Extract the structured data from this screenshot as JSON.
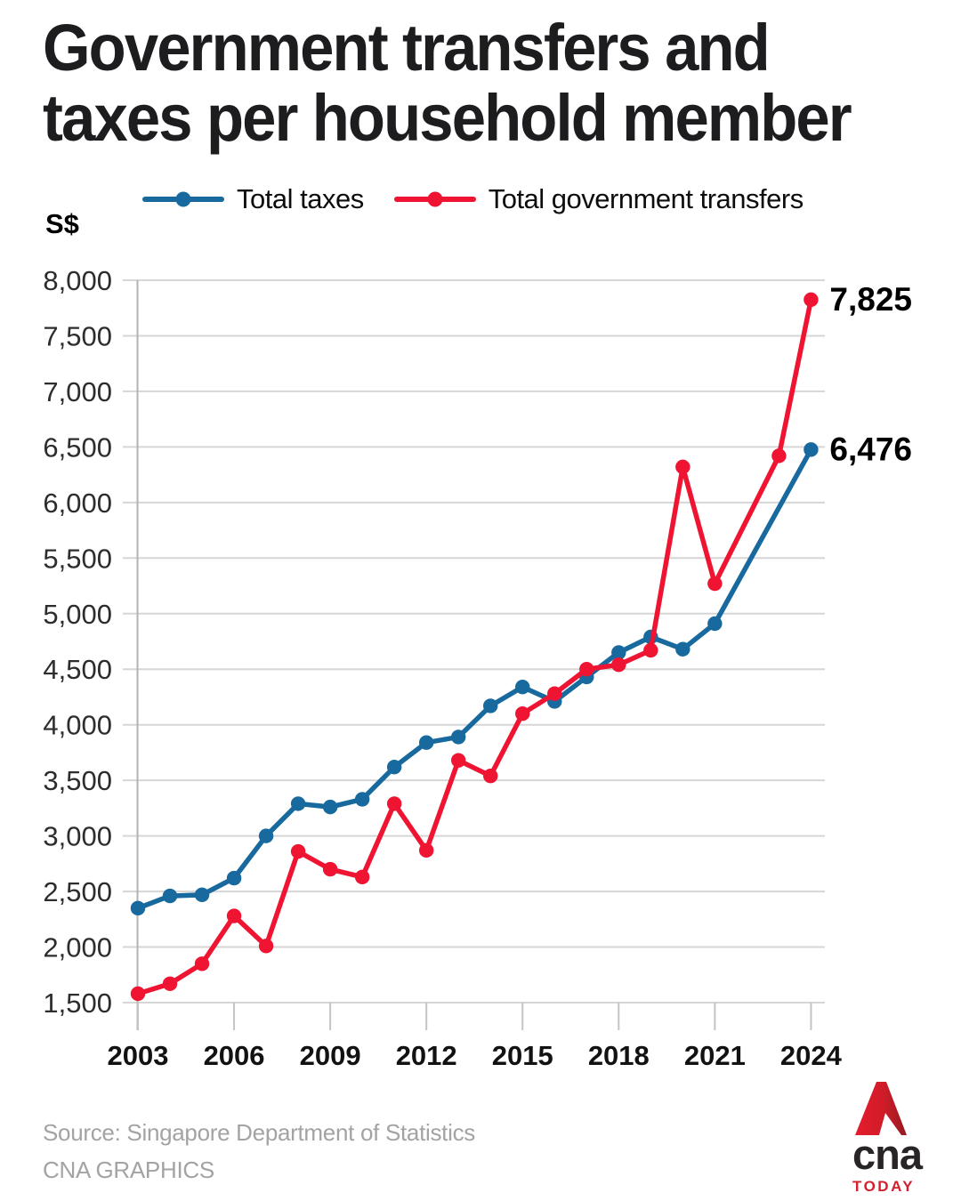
{
  "title_lines": [
    "Government transfers and",
    "taxes per household member"
  ],
  "unit_label": "S$",
  "legend": {
    "items": [
      {
        "label": "Total taxes",
        "color": "#17699e"
      },
      {
        "label": "Total government transfers",
        "color": "#ee1432"
      }
    ]
  },
  "footer": {
    "source": "Source: Singapore Department of Statistics",
    "credit": "CNA GRAPHICS"
  },
  "logo": {
    "brand": "cna",
    "sub": "TODAY"
  },
  "colors": {
    "taxes_blue": "#17699e",
    "transfers_red": "#ee1432",
    "gridline": "#d6d6d6",
    "axis": "#b3b3b3",
    "tick": "#c4c4c4",
    "y_label": "#2d2d2d",
    "x_label": "#121212",
    "end_label": "#000000"
  },
  "chart_data": {
    "type": "line",
    "title": "Government transfers and taxes per household member",
    "xlabel": "",
    "ylabel": "S$",
    "ylim": [
      1500,
      8000
    ],
    "xlim": [
      2003,
      2024
    ],
    "grid": true,
    "legend_position": "top",
    "yticks": [
      8000,
      7500,
      7000,
      6500,
      6000,
      5500,
      5000,
      4500,
      4000,
      3500,
      3000,
      2500,
      2000,
      1500
    ],
    "ytick_labels": [
      "8,000",
      "7,500",
      "7,000",
      "6,500",
      "6,000",
      "5,500",
      "5,000",
      "4,500",
      "4,000",
      "3,500",
      "3,000",
      "2,500",
      "2,000",
      "1,500"
    ],
    "xticks": [
      2003,
      2006,
      2009,
      2012,
      2015,
      2018,
      2021,
      2024
    ],
    "xtick_labels": [
      "2003",
      "2006",
      "2009",
      "2012",
      "2015",
      "2018",
      "2021",
      "2024"
    ],
    "series": [
      {
        "name": "Total taxes",
        "color": "#17699e",
        "end_label": "6,476",
        "points": [
          [
            2003,
            2350
          ],
          [
            2004,
            2460
          ],
          [
            2005,
            2470
          ],
          [
            2006,
            2620
          ],
          [
            2007,
            3000
          ],
          [
            2008,
            3290
          ],
          [
            2009,
            3260
          ],
          [
            2010,
            3330
          ],
          [
            2011,
            3620
          ],
          [
            2012,
            3840
          ],
          [
            2013,
            3890
          ],
          [
            2014,
            4170
          ],
          [
            2015,
            4340
          ],
          [
            2016,
            4210
          ],
          [
            2017,
            4430
          ],
          [
            2018,
            4650
          ],
          [
            2019,
            4790
          ],
          [
            2020,
            4680
          ],
          [
            2021,
            4910
          ],
          [
            2024,
            6476
          ]
        ]
      },
      {
        "name": "Total government transfers",
        "color": "#ee1432",
        "end_label": "7,825",
        "points": [
          [
            2003,
            1580
          ],
          [
            2004,
            1670
          ],
          [
            2005,
            1850
          ],
          [
            2006,
            2280
          ],
          [
            2007,
            2010
          ],
          [
            2008,
            2860
          ],
          [
            2009,
            2700
          ],
          [
            2010,
            2630
          ],
          [
            2011,
            3290
          ],
          [
            2012,
            2870
          ],
          [
            2013,
            3680
          ],
          [
            2014,
            3540
          ],
          [
            2015,
            4100
          ],
          [
            2016,
            4280
          ],
          [
            2017,
            4500
          ],
          [
            2018,
            4540
          ],
          [
            2019,
            4670
          ],
          [
            2020,
            6320
          ],
          [
            2021,
            5270
          ],
          [
            2023,
            6420
          ],
          [
            2024,
            7825
          ]
        ]
      }
    ]
  }
}
